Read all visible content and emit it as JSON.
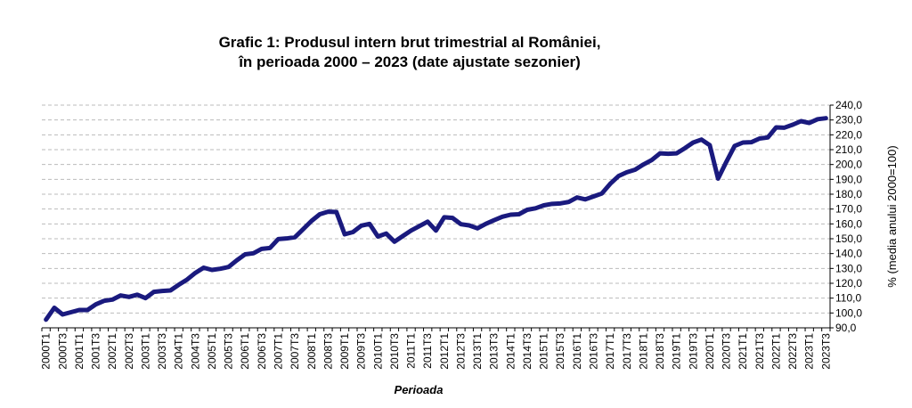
{
  "chart_data": {
    "type": "line",
    "title": "Grafic 1: Produsul intern brut trimestrial al României,",
    "subtitle": "în perioada 2000 – 2023 (date ajustate sezonier)",
    "xlabel": "Perioada",
    "ylabel": "% (media anului 2000=100)",
    "ylim": [
      90,
      240
    ],
    "yticks": [
      "90,0",
      "100,0",
      "110,0",
      "120,0",
      "130,0",
      "140,0",
      "150,0",
      "160,0",
      "170,0",
      "180,0",
      "190,0",
      "200,0",
      "210,0",
      "220,0",
      "230,0",
      "240,0"
    ],
    "grid": true,
    "y_axis_side": "right",
    "line_color": "#1a1a7e",
    "categories": [
      "2000T1",
      "2000T2",
      "2000T3",
      "2000T4",
      "2001T1",
      "2001T2",
      "2001T3",
      "2001T4",
      "2002T1",
      "2002T2",
      "2002T3",
      "2002T4",
      "2003T1",
      "2003T2",
      "2003T3",
      "2003T4",
      "2004T1",
      "2004T2",
      "2004T3",
      "2004T4",
      "2005T1",
      "2005T2",
      "2005T3",
      "2005T4",
      "2006T1",
      "2006T2",
      "2006T3",
      "2006T4",
      "2007T1",
      "2007T2",
      "2007T3",
      "2007T4",
      "2008T1",
      "2008T2",
      "2008T3",
      "2008T4",
      "2009T1",
      "2009T2",
      "2009T3",
      "2009T4",
      "2010T1",
      "2010T2",
      "2010T3",
      "2010T4",
      "2011T1",
      "2011T2",
      "2011T3",
      "2011T4",
      "2012T1",
      "2012T2",
      "2012T3",
      "2012T4",
      "2013T1",
      "2013T2",
      "2013T3",
      "2013T4",
      "2014T1",
      "2014T2",
      "2014T3",
      "2014T4",
      "2015T1",
      "2015T2",
      "2015T3",
      "2015T4",
      "2016T1",
      "2016T2",
      "2016T3",
      "2016T4",
      "2017T1",
      "2017T2",
      "2017T3",
      "2017T4",
      "2018T1",
      "2018T2",
      "2018T3",
      "2018T4",
      "2019T1",
      "2019T2",
      "2019T3",
      "2019T4",
      "2020T1",
      "2020T2",
      "2020T3",
      "2020T4",
      "2021T1",
      "2021T2",
      "2021T3",
      "2021T4",
      "2022T1",
      "2022T2",
      "2022T3",
      "2022T4",
      "2023T1",
      "2023T2",
      "2023T3"
    ],
    "x_tick_labels": [
      "2000T1",
      "2000T3",
      "2001T1",
      "2001T3",
      "2002T1",
      "2002T3",
      "2003T1",
      "2003T3",
      "2004T1",
      "2004T3",
      "2005T1",
      "2005T3",
      "2006T1",
      "2006T3",
      "2007T1",
      "2007T3",
      "2008T1",
      "2008T3",
      "2009T1",
      "2009T3",
      "2010T1",
      "2010T3",
      "2011T1",
      "2011T3",
      "2012T1",
      "2012T3",
      "2013T1",
      "2013T3",
      "2014T1",
      "2014T3",
      "2015T1",
      "2015T3",
      "2016T1",
      "2016T3",
      "2017T1",
      "2017T3",
      "2018T1",
      "2018T3",
      "2019T1",
      "2019T3",
      "2020T1",
      "2020T3",
      "2021T1",
      "2021T3",
      "2022T1",
      "2022T3",
      "2023T1",
      "2023T3"
    ],
    "series": [
      {
        "values": [
          95.5,
          103.5,
          99.0,
          100.5,
          102.0,
          102.0,
          105.8,
          108.2,
          109.0,
          111.8,
          110.8,
          112.3,
          110.0,
          114.2,
          114.8,
          115.2,
          119.0,
          122.5,
          127.0,
          130.5,
          129.0,
          129.8,
          131.0,
          135.5,
          139.5,
          140.2,
          143.2,
          143.8,
          149.8,
          150.2,
          151.0,
          156.5,
          162.0,
          166.5,
          168.2,
          168.0,
          153.0,
          154.5,
          158.8,
          160.0,
          151.5,
          153.5,
          148.0,
          151.8,
          155.5,
          158.5,
          161.5,
          155.5,
          164.5,
          164.0,
          159.8,
          159.0,
          157.0,
          160.0,
          162.5,
          164.8,
          166.2,
          166.5,
          169.5,
          170.5,
          172.5,
          173.5,
          173.8,
          174.8,
          177.8,
          176.5,
          178.5,
          180.5,
          187.0,
          192.2,
          194.8,
          196.5,
          200.0,
          203.0,
          207.5,
          207.2,
          207.5,
          211.0,
          214.8,
          216.8,
          213.0,
          190.5,
          201.8,
          212.5,
          214.8,
          215.0,
          217.5,
          218.2,
          225.0,
          224.8,
          226.8,
          229.2,
          228.0,
          230.5,
          231.2
        ]
      }
    ]
  }
}
